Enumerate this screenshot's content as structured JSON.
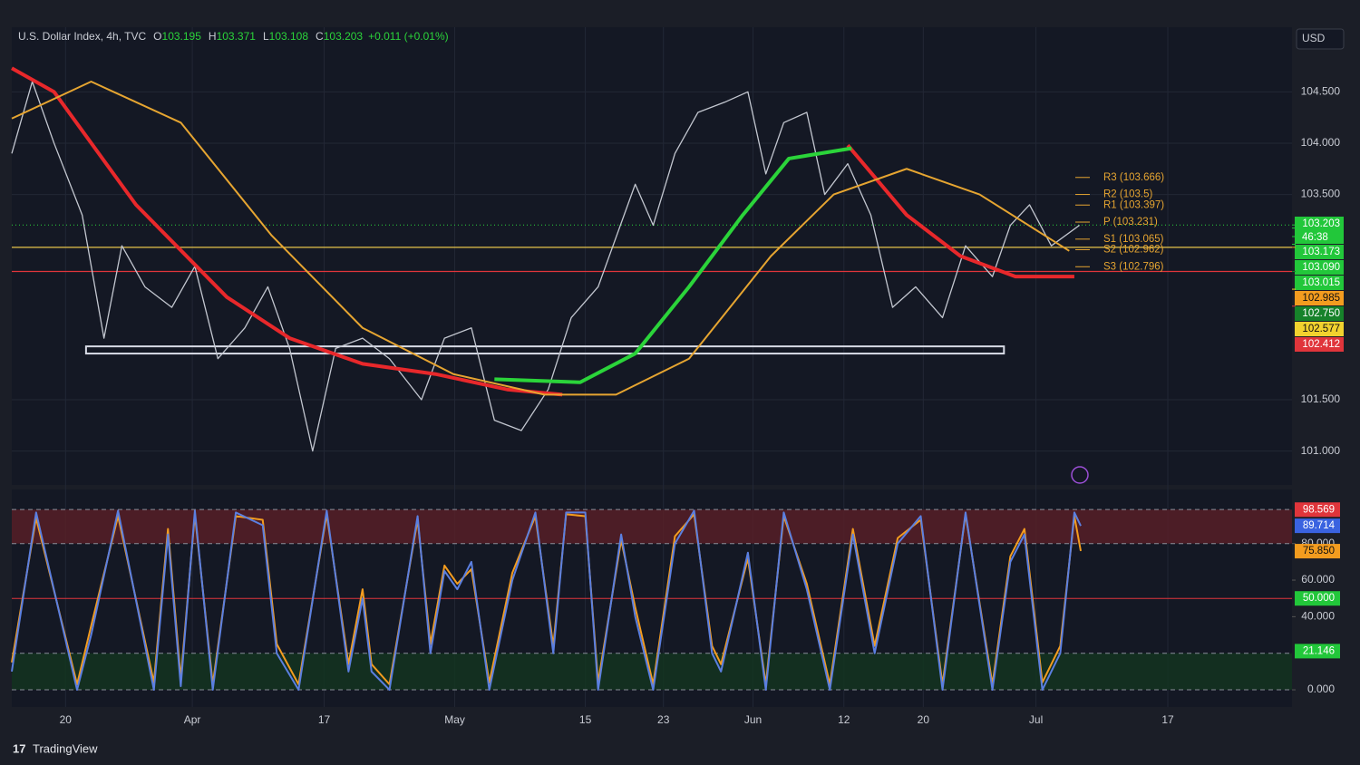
{
  "currency": "USD",
  "brand": "TradingView",
  "chart_data": [
    {
      "type": "line",
      "title": "U.S. Dollar Index, 4h, TVC",
      "ohlc": [
        {
          "key": "O",
          "value": 103.195
        },
        {
          "key": "H",
          "value": 103.371
        },
        {
          "key": "L",
          "value": 103.108
        },
        {
          "key": "C",
          "value": 103.203
        }
      ],
      "change": "+0.011 (+0.01%)",
      "xlim": [
        0,
        100
      ],
      "ylim": [
        100.67,
        105.13
      ],
      "xticks": [
        {
          "value": 4.2,
          "label": "20"
        },
        {
          "value": 14.1,
          "label": "Apr"
        },
        {
          "value": 24.4,
          "label": "17"
        },
        {
          "value": 34.6,
          "label": "May"
        },
        {
          "value": 44.8,
          "label": "15"
        },
        {
          "value": 50.9,
          "label": "23"
        },
        {
          "value": 57.9,
          "label": "Jun"
        },
        {
          "value": 65.0,
          "label": "12"
        },
        {
          "value": 71.2,
          "label": "20"
        },
        {
          "value": 80.0,
          "label": "Jul"
        },
        {
          "value": 90.3,
          "label": "17"
        }
      ],
      "yticks": [
        {
          "value": 101,
          "label": "101.000"
        },
        {
          "value": 101.5,
          "label": "101.500"
        },
        {
          "value": 103.5,
          "label": "103.500"
        },
        {
          "value": 104,
          "label": "104.000"
        },
        {
          "value": 104.5,
          "label": "104.500"
        }
      ],
      "series": [
        {
          "color": "#c3c7d0",
          "x": [
            0,
            1.6,
            3.3,
            5.5,
            7.2,
            8.6,
            10.4,
            12.5,
            14.3,
            16.1,
            18.2,
            20.0,
            21.7,
            23.5,
            25.3,
            27.4,
            29.5,
            32.0,
            33.8,
            35.9,
            37.7,
            39.8,
            41.9,
            43.7,
            45.8,
            48.7,
            50.1,
            51.8,
            53.6,
            55.7,
            57.5,
            58.9,
            60.3,
            62.1,
            63.5,
            65.3,
            67.1,
            68.8,
            70.6,
            72.7,
            74.5,
            76.6,
            78.0,
            79.5,
            81.2,
            83.4
          ],
          "values": [
            103.9,
            104.6,
            104.0,
            103.3,
            102.1,
            103.0,
            102.6,
            102.4,
            102.8,
            101.9,
            102.2,
            102.6,
            102.0,
            101.0,
            102.0,
            102.1,
            101.9,
            101.5,
            102.1,
            102.2,
            101.3,
            101.2,
            101.6,
            102.3,
            102.6,
            103.6,
            103.2,
            103.9,
            104.3,
            104.4,
            104.5,
            103.7,
            104.2,
            104.3,
            103.5,
            103.8,
            103.3,
            102.4,
            102.6,
            102.3,
            103.0,
            102.7,
            103.2,
            103.4,
            103.0,
            103.2
          ]
        },
        {
          "color": "#e8282b",
          "x": [
            0,
            3.3,
            9.7,
            16.8,
            21.7,
            27.4,
            33.1,
            38.7,
            43.0
          ],
          "values": [
            104.73,
            104.5,
            103.4,
            102.5,
            102.1,
            101.85,
            101.75,
            101.6,
            101.55
          ]
        },
        {
          "color": "#e8282b",
          "x": [
            65.3,
            69.9,
            74.1,
            78.4,
            83.0
          ],
          "values": [
            103.98,
            103.3,
            102.9,
            102.7,
            102.7
          ]
        },
        {
          "color": "#2bd43a",
          "x": [
            37.7,
            44.4,
            48.7,
            52.9,
            57.1,
            60.7,
            65.6
          ],
          "values": [
            101.7,
            101.67,
            101.95,
            102.6,
            103.3,
            103.85,
            103.95
          ]
        },
        {
          "color": "#e6a531",
          "x": [
            0,
            6.2,
            13.2,
            20.3,
            27.4,
            34.5,
            41.6,
            47.2,
            52.9,
            59.3,
            64.2,
            69.9,
            75.6,
            82.6
          ],
          "values": [
            104.24,
            104.6,
            104.2,
            103.1,
            102.2,
            101.75,
            101.55,
            101.55,
            101.9,
            102.9,
            103.5,
            103.75,
            103.5,
            102.95
          ]
        }
      ],
      "levels": [
        {
          "value": 102.985,
          "color": "#e6c34a"
        },
        {
          "value": 102.75,
          "color": "#e0353b"
        }
      ],
      "zone": {
        "x": [
          5.8,
          77.5
        ],
        "y": [
          101.95,
          102.02
        ]
      },
      "pivots": [
        {
          "label": "R3 (103.666)",
          "value": 103.666
        },
        {
          "label": "R2 (103.5)",
          "value": 103.5
        },
        {
          "label": "R1 (103.397)",
          "value": 103.397
        },
        {
          "label": "P (103.231)",
          "value": 103.231
        },
        {
          "label": "S1 (103.065)",
          "value": 103.065
        },
        {
          "label": "S2 (102.962)",
          "value": 102.962
        },
        {
          "label": "S3 (102.796)",
          "value": 102.796
        }
      ],
      "countdown": "46:38",
      "price_labels": [
        {
          "value": 103.203,
          "label": "103.203",
          "color": "#22c73a"
        },
        {
          "value": 103.173,
          "label": "103.173",
          "color": "#22c73a"
        },
        {
          "value": 103.09,
          "label": "103.090",
          "color": "#22c73a"
        },
        {
          "value": 103.015,
          "label": "103.015",
          "color": "#22c73a"
        },
        {
          "value": 102.985,
          "label": "102.985",
          "color": "#f39c1f"
        },
        {
          "value": 102.75,
          "label": "102.750",
          "color": "#16822a"
        },
        {
          "value": 102.577,
          "label": "102.577",
          "color": "#f2d22e"
        },
        {
          "value": 102.412,
          "label": "102.412",
          "color": "#e0353b"
        }
      ]
    },
    {
      "type": "line",
      "xlim": [
        0,
        100
      ],
      "ylim": [
        -9.4,
        109.6
      ],
      "yticks": [
        {
          "value": 0,
          "label": "0.000"
        },
        {
          "value": 40,
          "label": "40.000"
        },
        {
          "value": 60,
          "label": "60.000"
        },
        {
          "value": 80,
          "label": "80.000"
        }
      ],
      "zones": [
        {
          "y": [
            80,
            98.6
          ],
          "color": "#5a1f27"
        },
        {
          "y": [
            0,
            20
          ],
          "color": "#13361f"
        }
      ],
      "midline": {
        "value": 50,
        "color": "#e0353b"
      },
      "x": [
        0,
        1.9,
        5.1,
        6.2,
        8.3,
        11.1,
        12.2,
        13.2,
        14.3,
        15.7,
        17.5,
        19.6,
        20.7,
        22.4,
        24.6,
        26.3,
        27.4,
        28.1,
        29.5,
        31.7,
        32.7,
        33.8,
        34.8,
        35.9,
        37.3,
        39.1,
        40.9,
        42.3,
        43.3,
        44.8,
        45.8,
        47.6,
        48.7,
        50.1,
        51.8,
        53.3,
        54.7,
        55.4,
        57.5,
        58.9,
        60.3,
        62.1,
        63.9,
        65.7,
        67.4,
        69.2,
        71.0,
        72.7,
        74.5,
        76.6,
        78.0,
        79.1,
        80.5,
        81.9,
        83.0,
        83.5
      ],
      "series": [
        {
          "color": "#f39c1f",
          "values": [
            15,
            94,
            3,
            35,
            95,
            4,
            88,
            6,
            96,
            3,
            95,
            93,
            25,
            3,
            96,
            14,
            55,
            14,
            3,
            93,
            25,
            68,
            58,
            66,
            4,
            64,
            95,
            24,
            96,
            95,
            4,
            82,
            45,
            3,
            84,
            96,
            24,
            14,
            72,
            3,
            95,
            58,
            3,
            88,
            24,
            83,
            93,
            3,
            96,
            3,
            73,
            88,
            4,
            24,
            95,
            75.9
          ]
        },
        {
          "color": "#5b7fe0",
          "values": [
            10,
            97,
            0,
            30,
            98,
            0,
            85,
            2,
            98,
            0,
            97,
            90,
            20,
            0,
            98,
            10,
            50,
            10,
            0,
            95,
            20,
            65,
            55,
            70,
            0,
            60,
            97,
            20,
            97,
            97,
            0,
            85,
            40,
            0,
            80,
            98,
            20,
            10,
            75,
            0,
            97,
            55,
            0,
            85,
            20,
            80,
            95,
            0,
            97,
            0,
            70,
            85,
            0,
            20,
            97,
            89.7
          ]
        }
      ],
      "price_labels": [
        {
          "value": 98.569,
          "label": "98.569",
          "color": "#e0353b"
        },
        {
          "value": 89.714,
          "label": "89.714",
          "color": "#3a63e0"
        },
        {
          "value": 75.85,
          "label": "75.850",
          "color": "#f39c1f"
        },
        {
          "value": 50,
          "label": "50.000",
          "color": "#22c73a"
        },
        {
          "value": 21.146,
          "label": "21.146",
          "color": "#22c73a"
        }
      ]
    }
  ]
}
